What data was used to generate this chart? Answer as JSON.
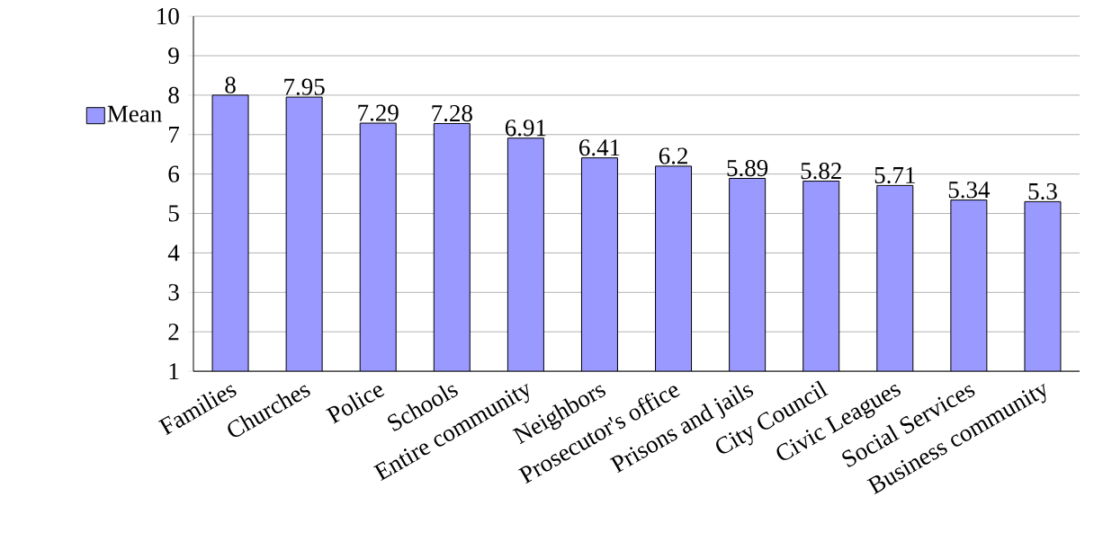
{
  "chart_data": {
    "type": "bar",
    "categories": [
      "Families",
      "Churches",
      "Police",
      "Schools",
      "Entire community",
      "Neighbors",
      "Prosecutor's office",
      "Prisons and jails",
      "City Council",
      "Civic Leagues",
      "Social Services",
      "Business community"
    ],
    "series": [
      {
        "name": "Mean",
        "color": "#9999ff",
        "values": [
          8,
          7.95,
          7.29,
          7.28,
          6.91,
          6.41,
          6.2,
          5.89,
          5.82,
          5.71,
          5.34,
          5.3
        ]
      }
    ],
    "ylim": [
      1,
      10
    ],
    "yticks": [
      1,
      2,
      3,
      4,
      5,
      6,
      7,
      8,
      9,
      10
    ],
    "grid": "y",
    "legend": "left",
    "data_labels": true
  }
}
